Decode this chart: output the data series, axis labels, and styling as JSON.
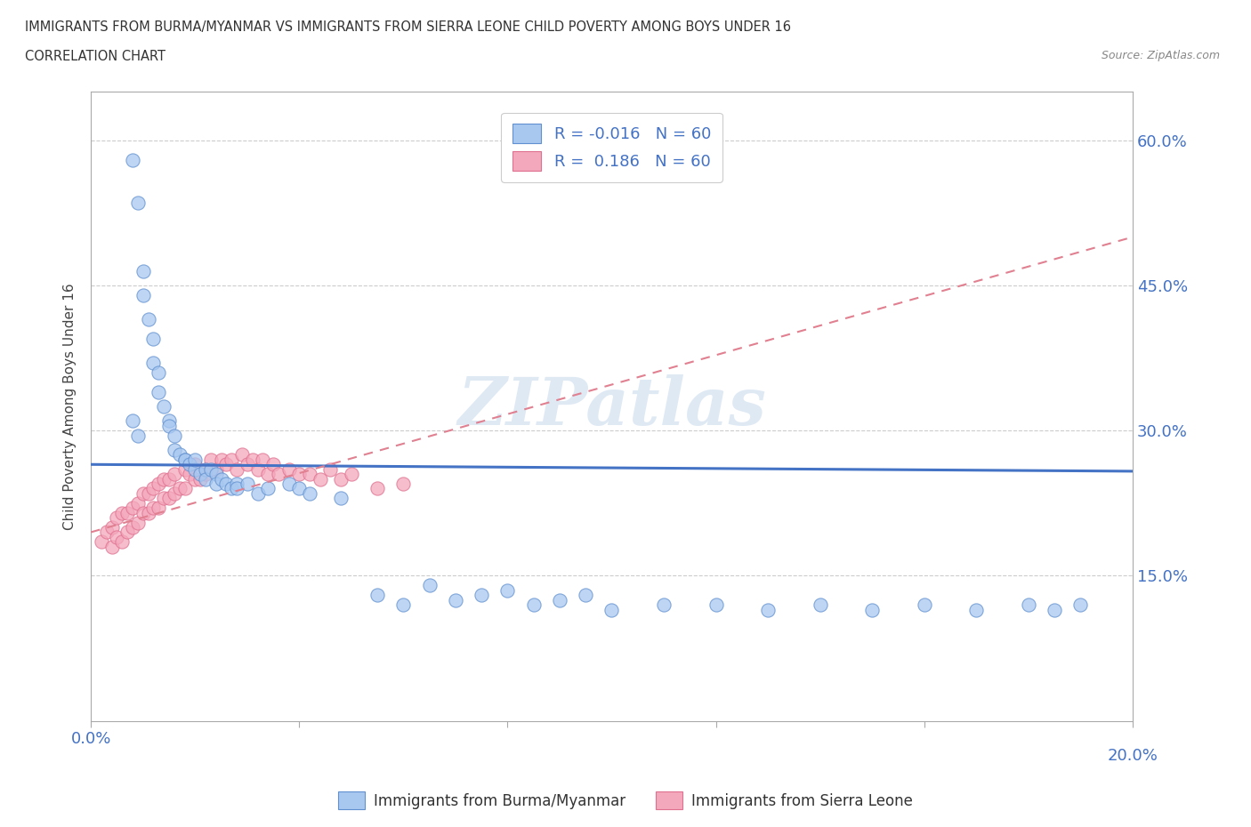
{
  "title_line1": "IMMIGRANTS FROM BURMA/MYANMAR VS IMMIGRANTS FROM SIERRA LEONE CHILD POVERTY AMONG BOYS UNDER 16",
  "title_line2": "CORRELATION CHART",
  "source_text": "Source: ZipAtlas.com",
  "ylabel": "Child Poverty Among Boys Under 16",
  "watermark": "ZIPatlas",
  "x_min": 0.0,
  "x_max": 0.2,
  "y_min": 0.0,
  "y_max": 0.65,
  "color_burma": "#A8C8F0",
  "color_sierra": "#F4A8BC",
  "edge_burma": "#6090D0",
  "edge_sierra": "#E07090",
  "line_color_burma": "#4472C4",
  "line_color_sierra": "#E08090",
  "r_burma": -0.016,
  "n_burma": 60,
  "r_sierra": 0.186,
  "n_sierra": 60,
  "legend1_label": "Immigrants from Burma/Myanmar",
  "legend2_label": "Immigrants from Sierra Leone",
  "burma_trend_y0": 0.265,
  "burma_trend_y1": 0.258,
  "sierra_trend_y0": 0.195,
  "sierra_trend_y1": 0.5,
  "burma_x": [
    0.008,
    0.009,
    0.01,
    0.01,
    0.011,
    0.012,
    0.012,
    0.013,
    0.013,
    0.014,
    0.015,
    0.015,
    0.016,
    0.016,
    0.017,
    0.018,
    0.018,
    0.019,
    0.02,
    0.02,
    0.021,
    0.022,
    0.022,
    0.023,
    0.024,
    0.024,
    0.025,
    0.026,
    0.027,
    0.028,
    0.028,
    0.03,
    0.032,
    0.034,
    0.038,
    0.04,
    0.042,
    0.048,
    0.055,
    0.06,
    0.065,
    0.07,
    0.075,
    0.08,
    0.085,
    0.09,
    0.095,
    0.1,
    0.11,
    0.12,
    0.13,
    0.14,
    0.15,
    0.16,
    0.17,
    0.18,
    0.185,
    0.19,
    0.008,
    0.009
  ],
  "burma_y": [
    0.58,
    0.535,
    0.465,
    0.44,
    0.415,
    0.395,
    0.37,
    0.36,
    0.34,
    0.325,
    0.31,
    0.305,
    0.295,
    0.28,
    0.275,
    0.27,
    0.27,
    0.265,
    0.26,
    0.27,
    0.255,
    0.26,
    0.25,
    0.26,
    0.255,
    0.245,
    0.25,
    0.245,
    0.24,
    0.245,
    0.24,
    0.245,
    0.235,
    0.24,
    0.245,
    0.24,
    0.235,
    0.23,
    0.13,
    0.12,
    0.14,
    0.125,
    0.13,
    0.135,
    0.12,
    0.125,
    0.13,
    0.115,
    0.12,
    0.12,
    0.115,
    0.12,
    0.115,
    0.12,
    0.115,
    0.12,
    0.115,
    0.12,
    0.31,
    0.295
  ],
  "sierra_x": [
    0.002,
    0.003,
    0.004,
    0.004,
    0.005,
    0.005,
    0.006,
    0.006,
    0.007,
    0.007,
    0.008,
    0.008,
    0.009,
    0.009,
    0.01,
    0.01,
    0.011,
    0.011,
    0.012,
    0.012,
    0.013,
    0.013,
    0.014,
    0.014,
    0.015,
    0.015,
    0.016,
    0.016,
    0.017,
    0.018,
    0.018,
    0.019,
    0.02,
    0.02,
    0.021,
    0.022,
    0.022,
    0.023,
    0.024,
    0.025,
    0.026,
    0.027,
    0.028,
    0.029,
    0.03,
    0.031,
    0.032,
    0.033,
    0.034,
    0.035,
    0.036,
    0.038,
    0.04,
    0.042,
    0.044,
    0.046,
    0.048,
    0.05,
    0.055,
    0.06
  ],
  "sierra_y": [
    0.185,
    0.195,
    0.18,
    0.2,
    0.19,
    0.21,
    0.185,
    0.215,
    0.195,
    0.215,
    0.2,
    0.22,
    0.205,
    0.225,
    0.215,
    0.235,
    0.215,
    0.235,
    0.22,
    0.24,
    0.22,
    0.245,
    0.23,
    0.25,
    0.23,
    0.25,
    0.235,
    0.255,
    0.24,
    0.26,
    0.24,
    0.255,
    0.25,
    0.265,
    0.25,
    0.26,
    0.255,
    0.27,
    0.26,
    0.27,
    0.265,
    0.27,
    0.26,
    0.275,
    0.265,
    0.27,
    0.26,
    0.27,
    0.255,
    0.265,
    0.255,
    0.26,
    0.255,
    0.255,
    0.25,
    0.26,
    0.25,
    0.255,
    0.24,
    0.245
  ]
}
